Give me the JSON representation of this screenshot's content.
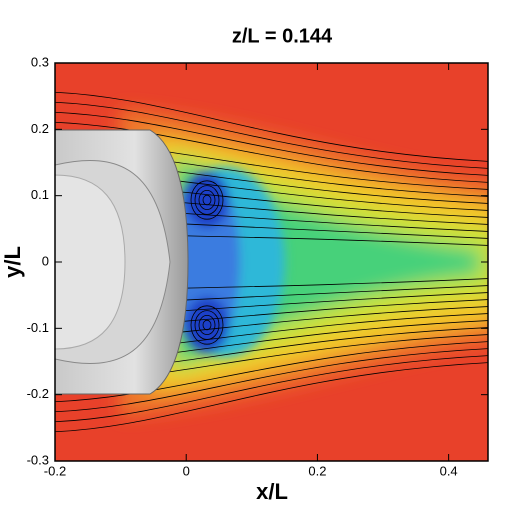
{
  "chart_data": {
    "type": "contour",
    "title": "z/L = 0.144",
    "x_label": "x/L",
    "y_label": "y/L",
    "xlim": [
      -0.2,
      0.46
    ],
    "ylim": [
      -0.3,
      0.3
    ],
    "xticks": [
      -0.2,
      0,
      0.2,
      0.4
    ],
    "yticks": [
      -0.3,
      -0.2,
      -0.1,
      0,
      0.1,
      0.2,
      0.3
    ]
  }
}
